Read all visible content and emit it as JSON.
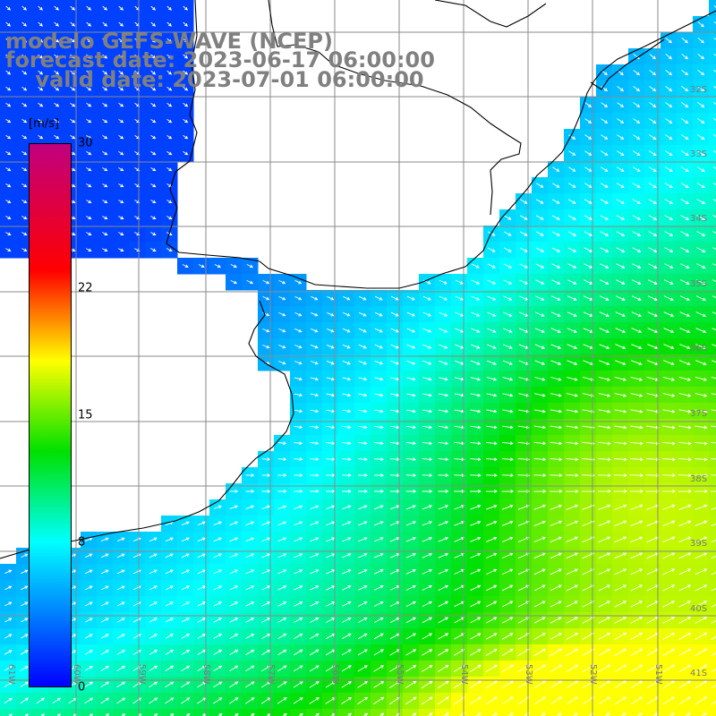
{
  "header": {
    "line1": "modelo GEFS-WAVE (NCEP)",
    "line2": "forecast date: 2023-06-17 06:00:00",
    "line3": "    valid date: 2023-07-01 06:00:00"
  },
  "colorbar": {
    "unit": "[m/s]",
    "ticks": [
      {
        "label": "30",
        "value": 30
      },
      {
        "label": "22",
        "value": 22
      },
      {
        "label": "15",
        "value": 15
      },
      {
        "label": "8",
        "value": 8
      },
      {
        "label": "0",
        "value": 0
      }
    ],
    "range": [
      0,
      30
    ],
    "colors": [
      "#0000ff",
      "#00ffff",
      "#00e000",
      "#ffff00",
      "#ff0000",
      "#c0007f"
    ]
  },
  "axes": {
    "lat_labels": [
      "32S",
      "33S",
      "34S",
      "35S",
      "36S",
      "37S",
      "38S",
      "39S",
      "40S",
      "41S"
    ],
    "lon_labels": [
      "61W",
      "60W",
      "59W",
      "58W",
      "57W",
      "56W",
      "55W",
      "54W",
      "53W",
      "52W",
      "51W"
    ],
    "grid": true
  },
  "field": {
    "variable": "wind speed",
    "arrow_color": "#ffffff",
    "land_color": "#ffffff",
    "coastline_color": "#000000"
  }
}
